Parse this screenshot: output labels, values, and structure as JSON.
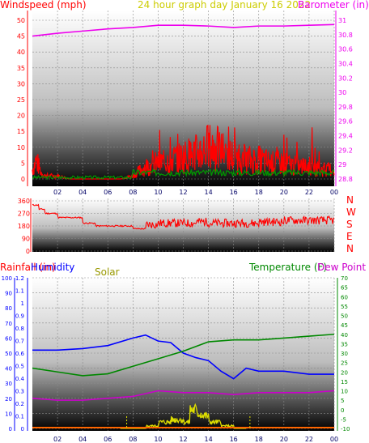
{
  "header": {
    "wind_label": "Windspeed (mph)",
    "center_title": "24 hour graph day    January 16 2022",
    "baro_label": "Barometer (in)"
  },
  "hours": [
    "02",
    "04",
    "06",
    "08",
    "10",
    "12",
    "14",
    "16",
    "18",
    "20",
    "22",
    "00"
  ],
  "direction_letters": [
    "N",
    "W",
    "S",
    "E",
    "N"
  ],
  "bottom_labels": {
    "rain": "Rainfall (in)",
    "humidity": "Humidity",
    "solar": "Solar",
    "temp": "Temperature (F)",
    "dew": "Dew Point (F)"
  },
  "colors": {
    "wind": "#ff0000",
    "gust": "#009900",
    "baro": "#ee00ee",
    "title": "#cccc00",
    "humidity": "#0000ff",
    "temp": "#008800",
    "dew": "#cc00cc",
    "solar": "#dddd00",
    "rain": "#ff0000"
  },
  "chart_data": [
    {
      "type": "line",
      "title": "24 hour graph day    January 16 2022",
      "xlabel": "",
      "x_ticks": [
        "02",
        "04",
        "06",
        "08",
        "10",
        "12",
        "14",
        "16",
        "18",
        "20",
        "22",
        "00"
      ],
      "y_left": {
        "label": "Windspeed (mph)",
        "ticks": [
          0,
          5,
          10,
          15,
          20,
          25,
          30,
          35,
          40,
          45,
          50
        ],
        "ylim": [
          0,
          50
        ]
      },
      "y_right": {
        "label": "Barometer (in)",
        "ticks": [
          28.8,
          29,
          29.2,
          29.4,
          29.6,
          29.8,
          30,
          30.2,
          30.4,
          30.6,
          30.8,
          31
        ],
        "ylim": [
          28.7,
          31.1
        ]
      },
      "series": [
        {
          "name": "Windspeed (mph)",
          "axis": "left",
          "hours": [
            0,
            0.3,
            0.7,
            1,
            2,
            3,
            4,
            5,
            6,
            7,
            8,
            9,
            10,
            11,
            12,
            13,
            14,
            15,
            16,
            17,
            18,
            19,
            20,
            21,
            22,
            23,
            24
          ],
          "values": [
            3,
            6,
            2,
            1,
            1,
            0,
            0,
            0,
            0,
            0,
            1,
            4,
            5,
            6,
            7,
            8,
            10,
            9,
            7,
            6,
            6,
            5,
            5,
            4,
            4,
            3,
            3
          ]
        },
        {
          "name": "Barometer (in)",
          "axis": "right",
          "hours": [
            0,
            2,
            4,
            6,
            8,
            10,
            12,
            14,
            16,
            18,
            20,
            22,
            24
          ],
          "values": [
            30.78,
            30.82,
            30.85,
            30.88,
            30.9,
            30.93,
            30.93,
            30.92,
            30.9,
            30.92,
            30.92,
            30.93,
            30.94
          ]
        }
      ]
    },
    {
      "type": "line",
      "title": "",
      "y_left": {
        "ticks": [
          360,
          270,
          180,
          90,
          0
        ],
        "ylim": [
          0,
          360
        ]
      },
      "y_right_labels": [
        "N",
        "W",
        "S",
        "E",
        "N"
      ],
      "series": [
        {
          "name": "Wind direction",
          "hours": [
            0,
            0.5,
            1,
            2,
            3,
            4,
            5,
            6,
            7,
            8,
            9,
            10,
            11,
            12,
            13,
            14,
            15,
            16,
            17,
            18,
            19,
            20,
            21,
            22,
            23,
            24
          ],
          "values": [
            330,
            300,
            270,
            240,
            240,
            200,
            180,
            180,
            180,
            160,
            190,
            200,
            200,
            200,
            210,
            200,
            200,
            200,
            200,
            210,
            210,
            220,
            220,
            220,
            220,
            210
          ]
        }
      ]
    },
    {
      "type": "line",
      "title": "",
      "y_rain": {
        "label": "Rainfall (in)",
        "ticks": [
          0,
          10,
          20,
          30,
          40,
          50,
          60,
          70,
          80,
          90,
          100
        ],
        "ylim": [
          0,
          100
        ]
      },
      "y_humidity_solar": {
        "ticks": [
          0,
          0.1,
          0.2,
          0.3,
          0.4,
          0.5,
          0.6,
          0.7,
          0.8,
          0.9,
          1,
          1.1,
          1.2
        ],
        "ylim": [
          0,
          1.2
        ]
      },
      "y_temp": {
        "label": "Temperature (F)",
        "ticks": [
          -10,
          -5,
          0,
          5,
          10,
          15,
          20,
          25,
          30,
          35,
          40,
          45,
          50,
          55,
          60,
          65,
          70
        ],
        "ylim": [
          -10,
          70
        ]
      },
      "series": [
        {
          "name": "Humidity",
          "hours": [
            0,
            2,
            4,
            6,
            8,
            9,
            10,
            11,
            12,
            13,
            14,
            15,
            16,
            17,
            18,
            20,
            22,
            24
          ],
          "values": [
            52,
            52,
            53,
            55,
            60,
            62,
            58,
            57,
            50,
            47,
            45,
            38,
            33,
            40,
            38,
            38,
            36,
            36
          ]
        },
        {
          "name": "Temperature (F)",
          "hours": [
            0,
            2,
            4,
            6,
            8,
            10,
            12,
            14,
            16,
            18,
            20,
            22,
            24
          ],
          "values": [
            22,
            20,
            18,
            19,
            23,
            27,
            31,
            36,
            37,
            37,
            38,
            39,
            40
          ]
        },
        {
          "name": "Dew Point (F)",
          "hours": [
            0,
            2,
            4,
            6,
            8,
            10,
            12,
            14,
            16,
            18,
            20,
            22,
            24
          ],
          "values": [
            6,
            5,
            5,
            6,
            7,
            10,
            9,
            9,
            8,
            9,
            9,
            9,
            10
          ]
        },
        {
          "name": "Solar",
          "hours": [
            7,
            8,
            9,
            10,
            11,
            12,
            12.5,
            13,
            13.5,
            14,
            15,
            16,
            17
          ],
          "values": [
            0,
            0,
            0.02,
            0.05,
            0.07,
            0.05,
            0.15,
            0.12,
            0.1,
            0.05,
            0.02,
            0,
            0
          ]
        },
        {
          "name": "Rainfall (in)",
          "hours": [
            0,
            24
          ],
          "values": [
            0,
            0
          ]
        }
      ]
    }
  ]
}
